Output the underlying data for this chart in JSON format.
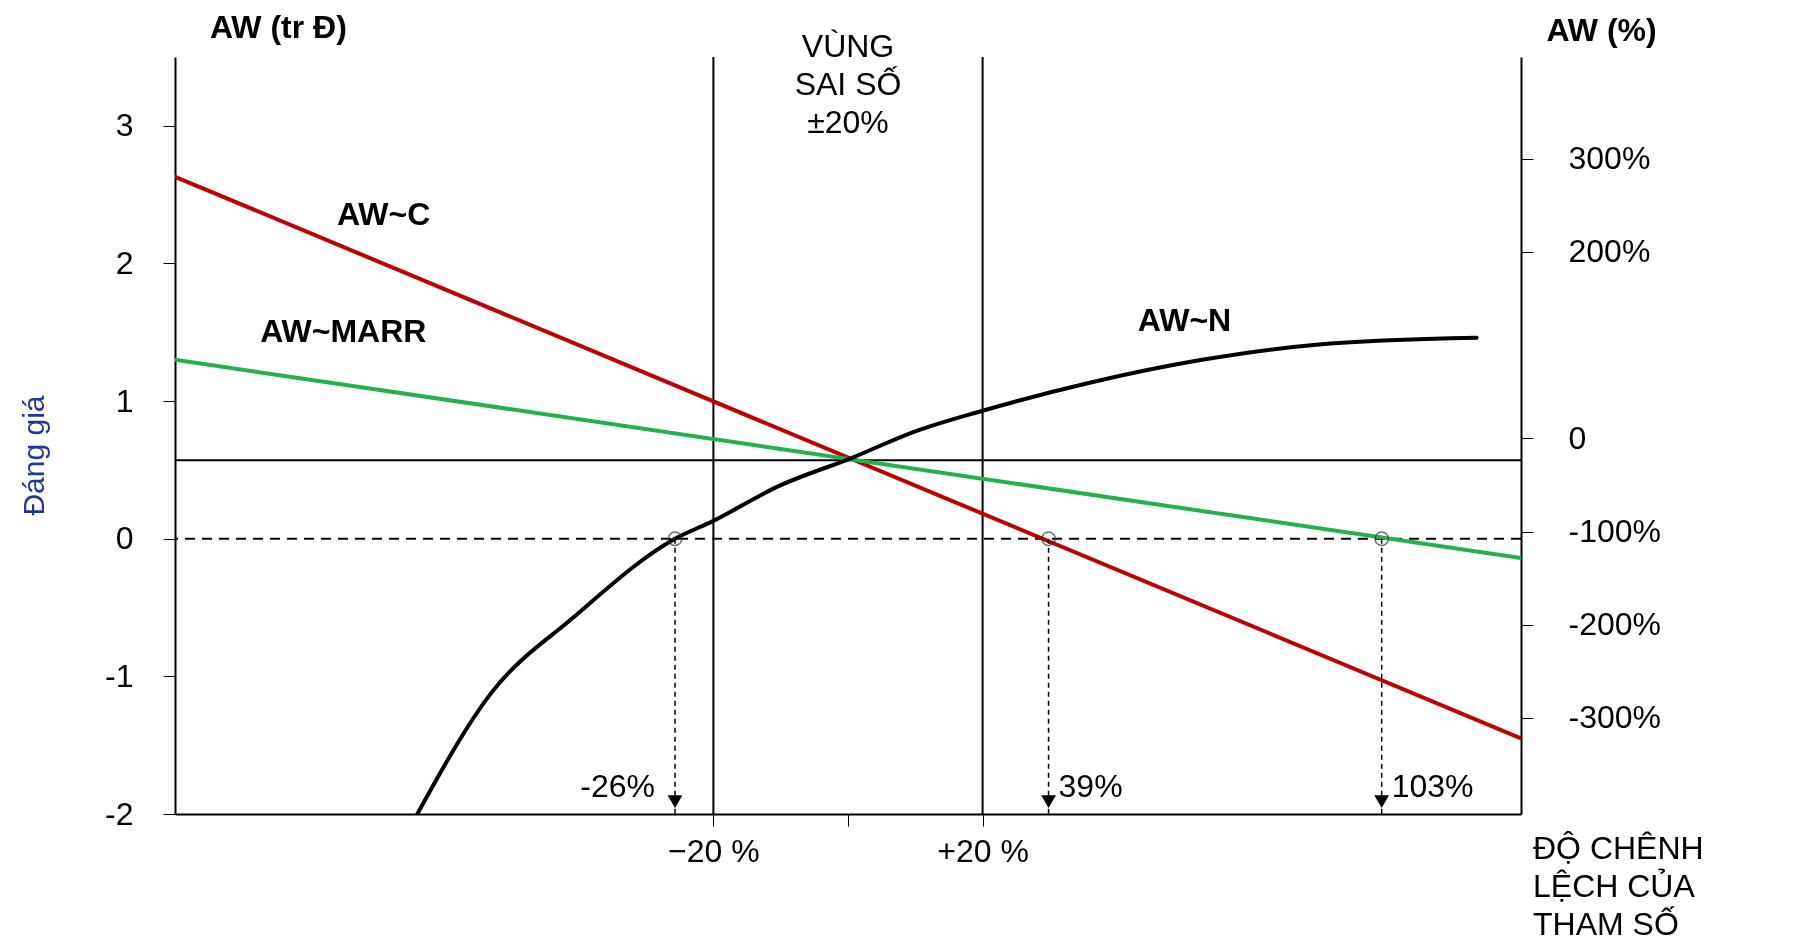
{
  "chart_data": {
    "type": "line",
    "xlabel": "ĐỘ CHÊNH\nLỆCH CỦA\nTHAM SỐ",
    "ylabel": "AW (tr Đ)",
    "y2label": "AW (%)",
    "xlim": [
      -100,
      100
    ],
    "xticks": [
      {
        "value": -20,
        "label": "−20 %"
      },
      {
        "value": 0,
        "label": null
      },
      {
        "value": 20,
        "label": "+20 %"
      }
    ],
    "ylim": [
      -2,
      3.5
    ],
    "yticks": [
      -2,
      -1,
      0,
      1,
      2,
      3
    ],
    "y2lim": [
      -403,
      409
    ],
    "y2ticks": [
      {
        "value": 300,
        "label": "300%"
      },
      {
        "value": 200,
        "label": "200%"
      },
      0,
      {
        "value": -100,
        "label": "-100%"
      },
      {
        "value": -200,
        "label": "-200%"
      },
      {
        "value": -300,
        "label": "-300%"
      }
    ],
    "series": [
      {
        "name": "AW~C",
        "color": "#c00000",
        "x": [
          -100,
          100
        ],
        "values": [
          2.63,
          -1.45
        ]
      },
      {
        "name": "AW~MARR",
        "color": "#22b14c",
        "x": [
          -100,
          100
        ],
        "values": [
          1.3,
          -0.14
        ]
      },
      {
        "name": "AW~N",
        "color": "#000000",
        "x": [
          -64,
          -53,
          -41,
          -25.7,
          -20,
          -10.4,
          0.7,
          10,
          20,
          35.6,
          52.6,
          69.6,
          93.4
        ],
        "values": [
          -2,
          -1.12,
          -0.58,
          0,
          0.13,
          0.38,
          0.59,
          0.78,
          0.93,
          1.13,
          1.3,
          1.41,
          1.46
        ]
      }
    ],
    "ref_lines": [
      {
        "axis": "y",
        "value": 0,
        "line_style": "dashed"
      },
      {
        "axis": "y",
        "value": 0.57
      },
      {
        "axis": "x",
        "value": -20
      },
      {
        "axis": "x",
        "value": 20
      }
    ],
    "annotations": [
      "Đáng giá",
      "VÙNG\nSAI SỐ\n±20%",
      {
        "text": "-26%",
        "x": -25.7,
        "y": 0
      },
      {
        "text": "39%",
        "x": 29.8,
        "y": 0
      },
      {
        "text": "103%",
        "x": 79.3,
        "y": 0
      }
    ],
    "grid": false
  }
}
